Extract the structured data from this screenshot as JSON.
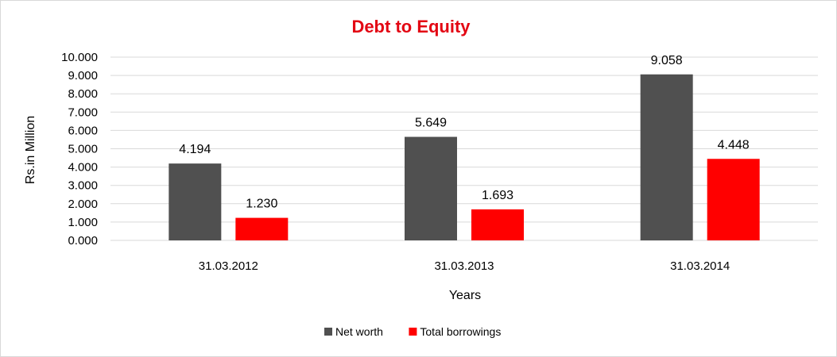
{
  "chart_data": {
    "type": "bar",
    "title": "Debt to Equity",
    "xlabel": "Years",
    "ylabel": "Rs.in Million",
    "categories": [
      "31.03.2012",
      "31.03.2013",
      "31.03.2014"
    ],
    "series": [
      {
        "name": "Net worth",
        "values": [
          4.194,
          5.649,
          9.058
        ],
        "labels": [
          "4.194",
          "5.649",
          "9.058"
        ],
        "color": "#505050"
      },
      {
        "name": "Total borrowings",
        "values": [
          1.23,
          1.693,
          4.448
        ],
        "labels": [
          "1.230",
          "1.693",
          "4.448"
        ],
        "color": "#ff0000"
      }
    ],
    "ylim": [
      0,
      10
    ],
    "yticks": [
      "0.000",
      "1.000",
      "2.000",
      "3.000",
      "4.000",
      "5.000",
      "6.000",
      "7.000",
      "8.000",
      "9.000",
      "10.000"
    ],
    "grid": true,
    "legend_position": "bottom",
    "title_color": "#e30613"
  }
}
